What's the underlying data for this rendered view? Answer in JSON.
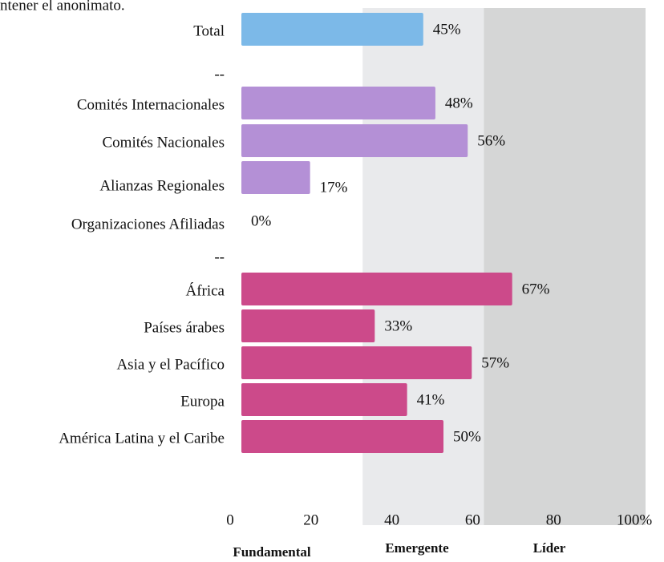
{
  "chart_data": {
    "type": "bar",
    "orientation": "horizontal",
    "note": "ntener el anonimato.",
    "categories": [
      "Total",
      "--",
      "Comités Internacionales",
      "Comités Nacionales",
      "Alianzas Regionales",
      "Organizaciones Afiliadas",
      "--",
      "África",
      "Países árabes",
      "Asia y el Pacífico",
      "Europa",
      "América Latina y el Caribe"
    ],
    "values": [
      45,
      null,
      48,
      56,
      17,
      0,
      null,
      67,
      33,
      57,
      41,
      50
    ],
    "value_labels": [
      "45%",
      null,
      "48%",
      "56%",
      "17%",
      "0%",
      null,
      "67%",
      "33%",
      "57%",
      "41%",
      "50%"
    ],
    "colors": [
      "#7cb9e8",
      null,
      "#b490d6",
      "#b490d6",
      "#b490d6",
      "#b490d6",
      null,
      "#cc4a8a",
      "#cc4a8a",
      "#cc4a8a",
      "#cc4a8a",
      "#cc4a8a"
    ],
    "xlim": [
      0,
      100
    ],
    "xticks": [
      0,
      20,
      40,
      60,
      80,
      {
        "value": 100,
        "label": "100%"
      }
    ],
    "zones": [
      {
        "name": "Fundamental",
        "from": 0,
        "to": 30,
        "color": "#ffffff"
      },
      {
        "name": "Emergente",
        "from": 30,
        "to": 60,
        "color": "#e9eaec"
      },
      {
        "name": "Líder",
        "from": 60,
        "to": 100,
        "color": "#d5d6d6"
      }
    ]
  }
}
